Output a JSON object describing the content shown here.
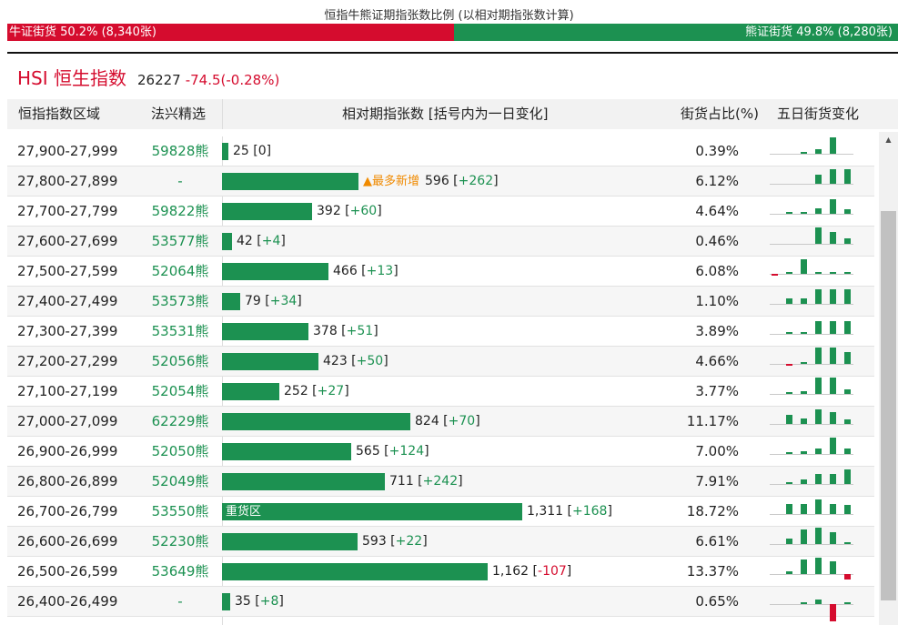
{
  "header": {
    "title": "恒指牛熊证期指张数比例 (以相对期指张数计算)",
    "bull_label": "牛证街货 50.2% (8,340张)",
    "bear_label": "熊证街货 49.8% (8,280张)",
    "bull_ratio": 0.502
  },
  "index": {
    "name": "HSI 恒生指数",
    "value": "26227",
    "change": "-74.5(-0.28%)"
  },
  "columns": {
    "range": "恒指指数区域",
    "pick": "法兴精选",
    "count": "相对期指张数 [括号内为一日变化]",
    "share": "街货占比(%)",
    "five_day": "五日街货变化"
  },
  "colors": {
    "bull": "#d50c2e",
    "bear": "#1c9151",
    "tag": "#f08a00"
  },
  "scroll_up_icon": "triangle-up",
  "rows": [
    {
      "range": "27,900-27,999",
      "pick": "59828熊",
      "count": 25,
      "count_text": "25",
      "change": "0",
      "share": "0.39%",
      "spark": [
        0,
        0,
        1,
        3,
        11,
        0
      ]
    },
    {
      "range": "27,800-27,899",
      "pick": "-",
      "count": 596,
      "count_text": "596",
      "change": "+262",
      "share": "6.12%",
      "tag": "▲最多新增",
      "spark": [
        0,
        0,
        0,
        6,
        10,
        10
      ]
    },
    {
      "range": "27,700-27,799",
      "pick": "59822熊",
      "count": 392,
      "count_text": "392",
      "change": "+60",
      "share": "4.64%",
      "spark": [
        0,
        1,
        1,
        4,
        10,
        3
      ]
    },
    {
      "range": "27,600-27,699",
      "pick": "53577熊",
      "count": 42,
      "count_text": "42",
      "change": "+4",
      "share": "0.46%",
      "spark": [
        0,
        0,
        0,
        11,
        8,
        4
      ]
    },
    {
      "range": "27,500-27,599",
      "pick": "52064熊",
      "count": 466,
      "count_text": "466",
      "change": "+13",
      "share": "6.08%",
      "spark": [
        -1,
        1,
        10,
        1,
        1,
        1
      ]
    },
    {
      "range": "27,400-27,499",
      "pick": "53573熊",
      "count": 79,
      "count_text": "79",
      "change": "+34",
      "share": "1.10%",
      "spark": [
        0,
        4,
        4,
        10,
        10,
        10
      ]
    },
    {
      "range": "27,300-27,399",
      "pick": "53531熊",
      "count": 378,
      "count_text": "378",
      "change": "+51",
      "share": "3.89%",
      "spark": [
        0,
        1,
        1,
        9,
        9,
        9
      ]
    },
    {
      "range": "27,200-27,299",
      "pick": "52056熊",
      "count": 423,
      "count_text": "423",
      "change": "+50",
      "share": "4.66%",
      "spark": [
        0,
        -1,
        1,
        11,
        11,
        8
      ]
    },
    {
      "range": "27,100-27,199",
      "pick": "52054熊",
      "count": 252,
      "count_text": "252",
      "change": "+27",
      "share": "3.77%",
      "spark": [
        0,
        1,
        2,
        11,
        11,
        3
      ]
    },
    {
      "range": "27,000-27,099",
      "pick": "62229熊",
      "count": 824,
      "count_text": "824",
      "change": "+70",
      "share": "11.17%",
      "spark": [
        0,
        6,
        4,
        10,
        8,
        3
      ]
    },
    {
      "range": "26,900-26,999",
      "pick": "52050熊",
      "count": 565,
      "count_text": "565",
      "change": "+124",
      "share": "7.00%",
      "spark": [
        0,
        1,
        2,
        4,
        11,
        4
      ]
    },
    {
      "range": "26,800-26,899",
      "pick": "52049熊",
      "count": 711,
      "count_text": "711",
      "change": "+242",
      "share": "7.91%",
      "spark": [
        0,
        1,
        3,
        7,
        7,
        10
      ]
    },
    {
      "range": "26,700-26,799",
      "pick": "53550熊",
      "count": 1311,
      "count_text": "1,311",
      "change": "+168",
      "share": "18.72%",
      "tag_inside": "重货区",
      "spark": [
        0,
        7,
        7,
        10,
        7,
        6
      ]
    },
    {
      "range": "26,600-26,699",
      "pick": "52230熊",
      "count": 593,
      "count_text": "593",
      "change": "+22",
      "share": "6.61%",
      "spark": [
        0,
        4,
        10,
        11,
        8,
        1
      ]
    },
    {
      "range": "26,500-26,599",
      "pick": "53649熊",
      "count": 1162,
      "count_text": "1,162",
      "change": "-107",
      "share": "13.37%",
      "spark": [
        0,
        2,
        10,
        11,
        9,
        -4
      ]
    },
    {
      "range": "26,400-26,499",
      "pick": "-",
      "count": 35,
      "count_text": "35",
      "change": "+8",
      "share": "0.65%",
      "spark": [
        0,
        0,
        1,
        3,
        -12,
        1
      ]
    }
  ]
}
